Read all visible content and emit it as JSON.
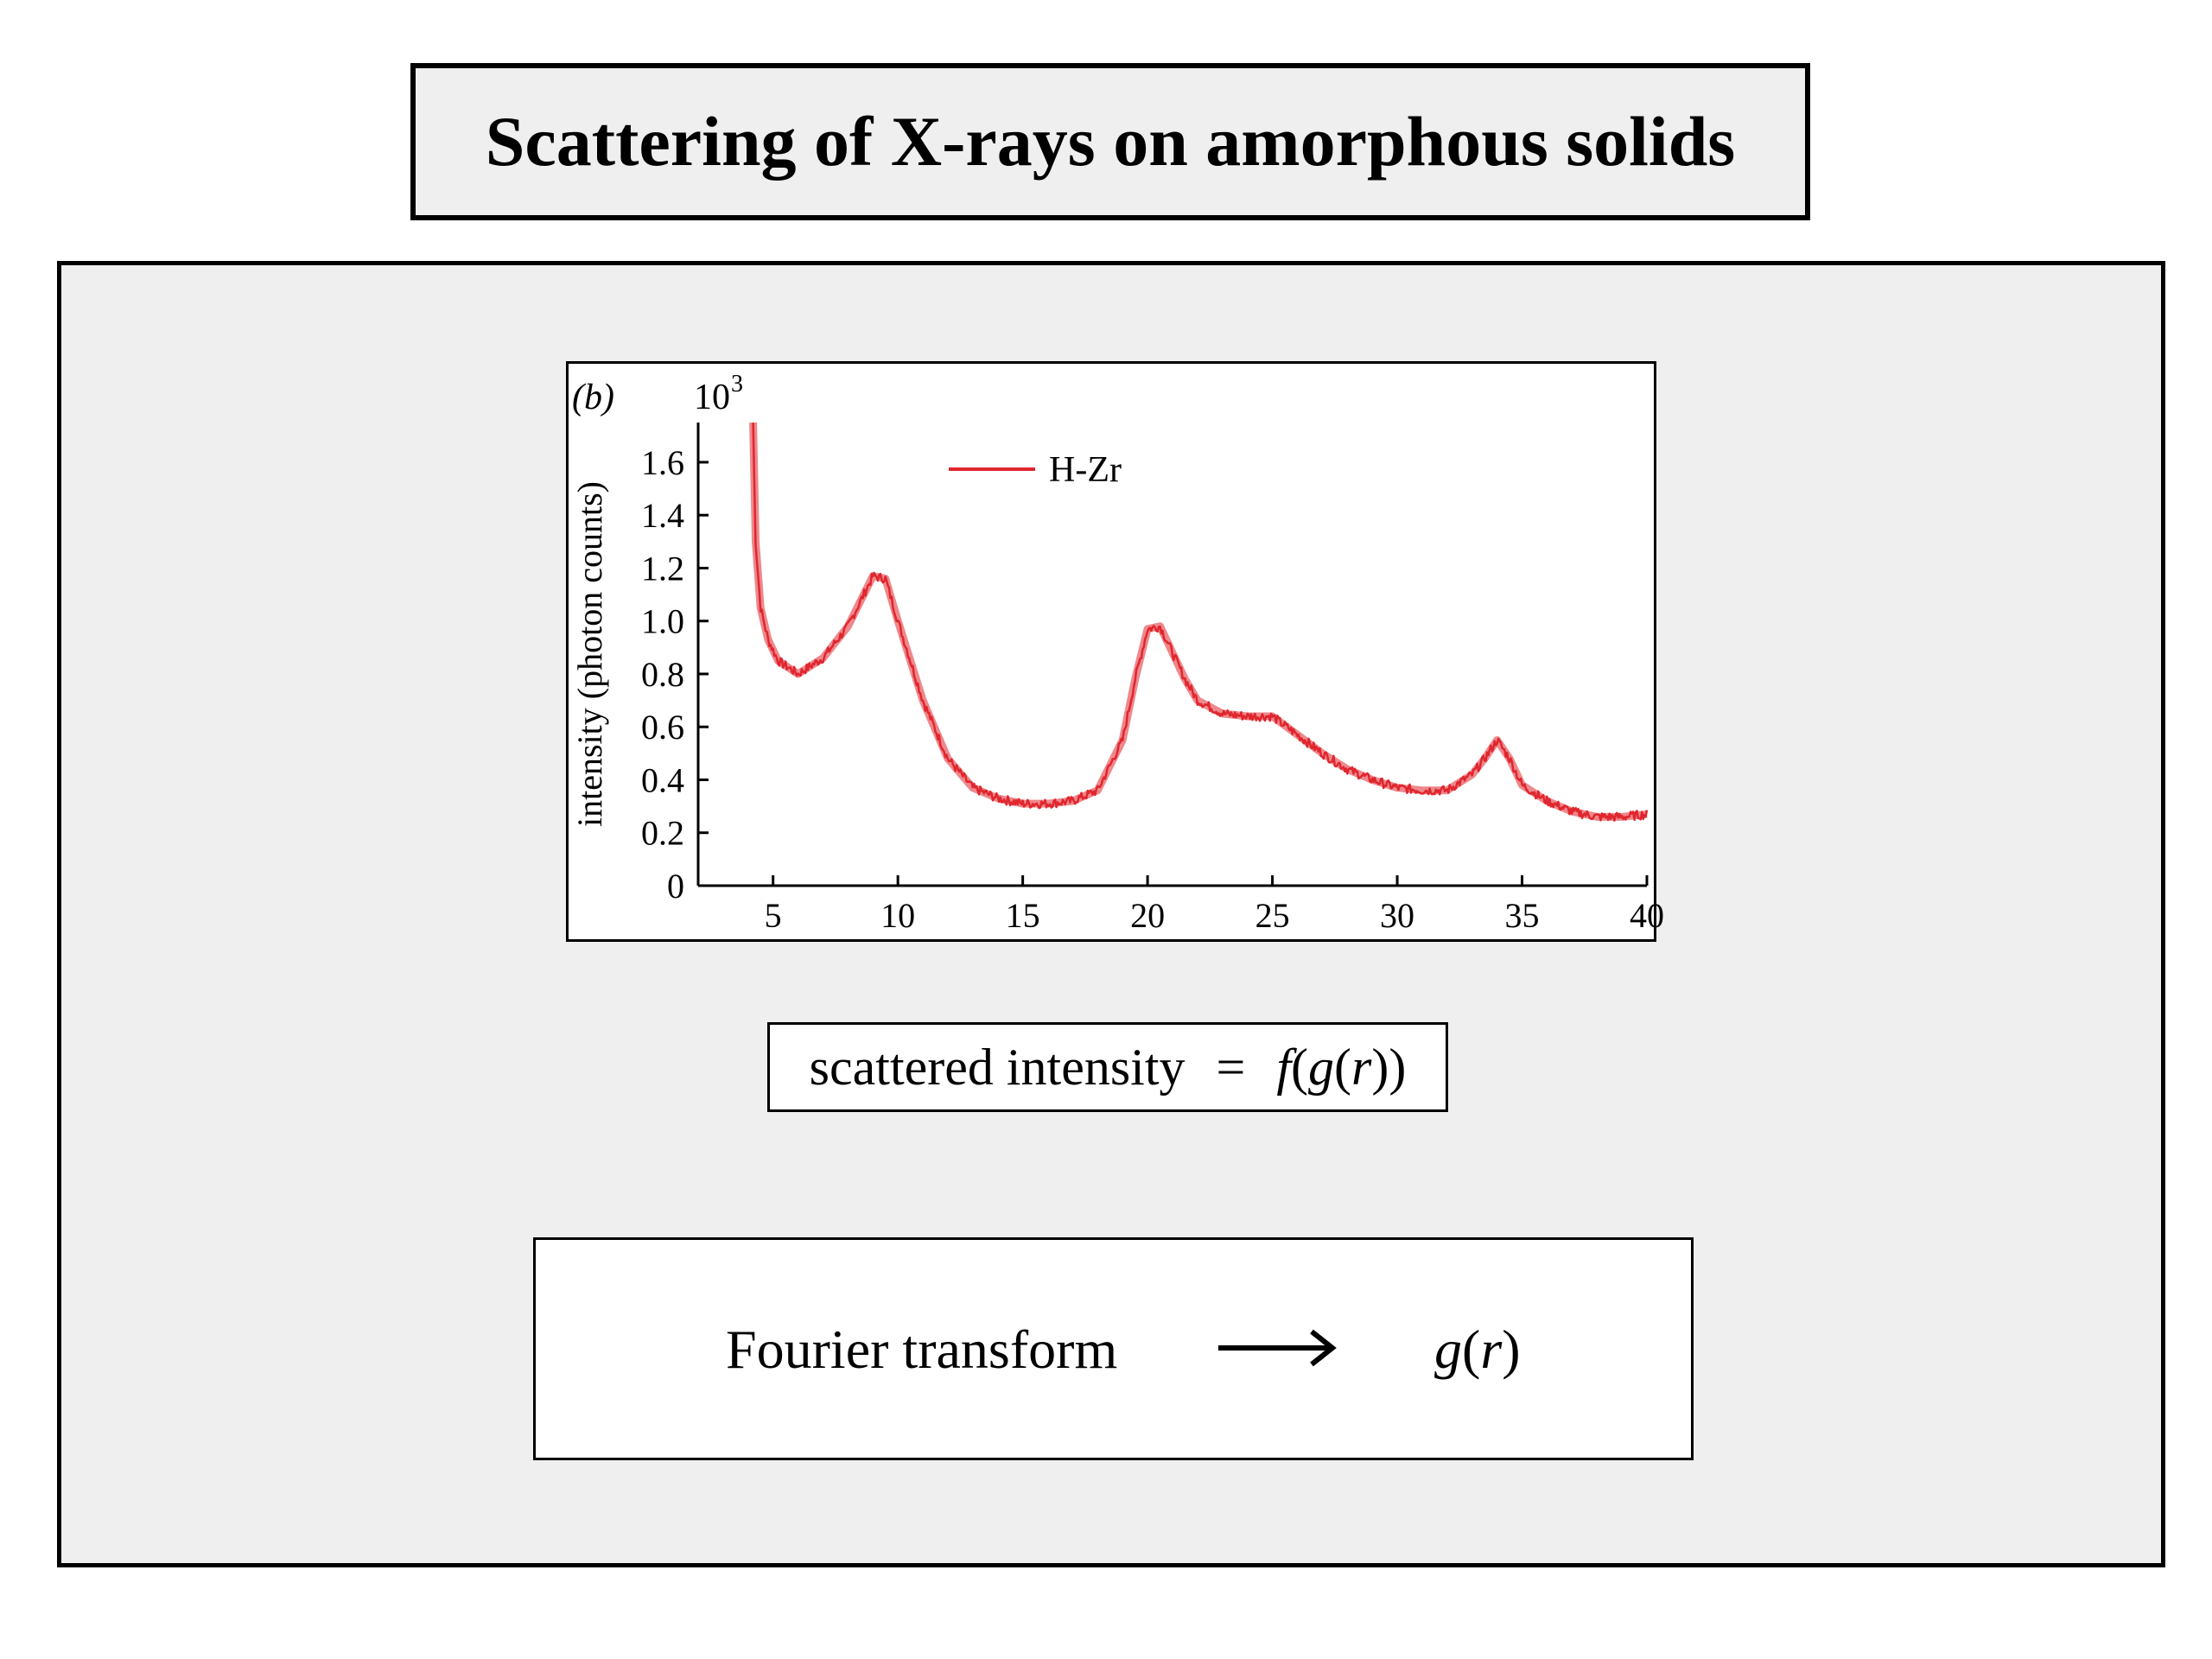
{
  "title": "Scattering of X-rays on amorphous solids",
  "formula": {
    "lhs": "scattered intensity",
    "eq": "=",
    "rhs_f": "f",
    "rhs_open": "(",
    "rhs_g": "g",
    "rhs_paren_open": "(",
    "rhs_r": "r",
    "rhs_close": "))"
  },
  "fourier": {
    "label": "Fourier transform",
    "result_g": "g",
    "result_open": "(",
    "result_r": "r",
    "result_close": ")",
    "arrow_icon": "right-arrow-icon"
  },
  "chart_data": {
    "type": "line",
    "panel_label": "(b)",
    "ylabel": "intensity (photon counts)",
    "y_multiplier": "10",
    "y_multiplier_exp": "3",
    "xlim": [
      2,
      40
    ],
    "ylim": [
      0,
      1.75
    ],
    "xticks": [
      5,
      10,
      15,
      20,
      25,
      30,
      35,
      40
    ],
    "yticks": [
      0,
      0.2,
      0.4,
      0.6,
      0.8,
      1.0,
      1.2,
      1.4,
      1.6
    ],
    "ytick_labels": [
      "0",
      "0.2",
      "0.4",
      "0.6",
      "0.8",
      "1.0",
      "1.2",
      "1.4",
      "1.6"
    ],
    "legend_position": "top-center",
    "series": [
      {
        "name": "H-Zr",
        "color": "#e0262e",
        "x": [
          4.2,
          4.3,
          4.5,
          4.8,
          5.2,
          6.0,
          7.0,
          8.0,
          9.0,
          9.5,
          10.0,
          11.0,
          12.0,
          13.0,
          14.0,
          15.0,
          16.0,
          17.0,
          18.0,
          19.0,
          19.5,
          20.0,
          20.5,
          21.0,
          21.5,
          22.0,
          23.0,
          24.0,
          25.0,
          26.0,
          27.0,
          28.0,
          29.0,
          30.0,
          31.0,
          32.0,
          33.0,
          33.5,
          34.0,
          34.5,
          35.0,
          36.0,
          37.0,
          38.0,
          39.0,
          40.0
        ],
        "y": [
          1.75,
          1.3,
          1.05,
          0.93,
          0.85,
          0.8,
          0.86,
          0.98,
          1.17,
          1.16,
          1.0,
          0.7,
          0.48,
          0.37,
          0.33,
          0.31,
          0.31,
          0.32,
          0.36,
          0.55,
          0.78,
          0.97,
          0.98,
          0.88,
          0.78,
          0.7,
          0.65,
          0.64,
          0.64,
          0.57,
          0.5,
          0.44,
          0.4,
          0.37,
          0.36,
          0.36,
          0.42,
          0.48,
          0.55,
          0.48,
          0.38,
          0.32,
          0.28,
          0.26,
          0.26,
          0.27
        ]
      }
    ]
  }
}
